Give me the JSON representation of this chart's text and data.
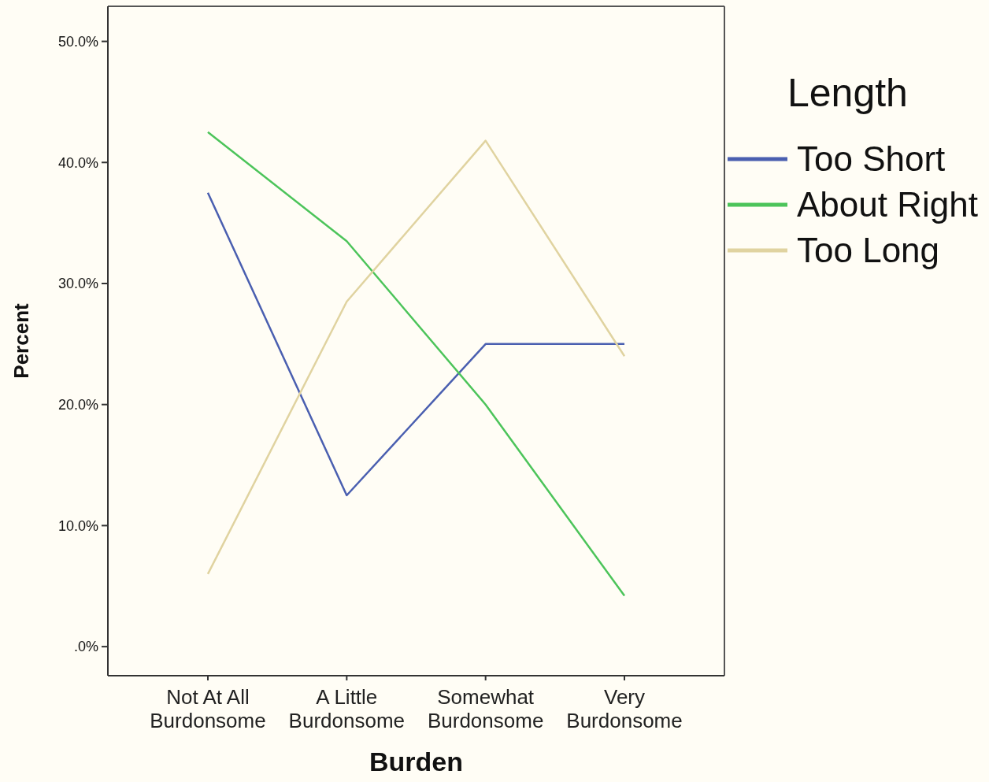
{
  "chart_data": {
    "type": "line",
    "xlabel": "Burden",
    "ylabel": "Percent",
    "legend_title": "Length",
    "legend": "top right",
    "grid": false,
    "categories": [
      "Not At All Burdonsome",
      "A Little Burdonsome",
      "Somewhat Burdonsome",
      "Very Burdonsome"
    ],
    "ylim": [
      -2.4,
      52.9
    ],
    "yticks": [
      {
        "value": 0,
        "label": ".0%"
      },
      {
        "value": 10,
        "label": "10.0%"
      },
      {
        "value": 20,
        "label": "20.0%"
      },
      {
        "value": 30,
        "label": "30.0%"
      },
      {
        "value": 40,
        "label": "40.0%"
      },
      {
        "value": 50,
        "label": "50.0%"
      }
    ],
    "series": [
      {
        "name": "Too Short",
        "color": "#4a5fb0",
        "values": [
          37.5,
          12.5,
          25,
          25
        ]
      },
      {
        "name": "About Right",
        "color": "#4cc45a",
        "values": [
          42.5,
          33.5,
          20,
          4.2
        ]
      },
      {
        "name": "Too Long",
        "color": "#e0d3a0",
        "values": [
          6,
          28.5,
          41.8,
          24
        ]
      }
    ]
  }
}
